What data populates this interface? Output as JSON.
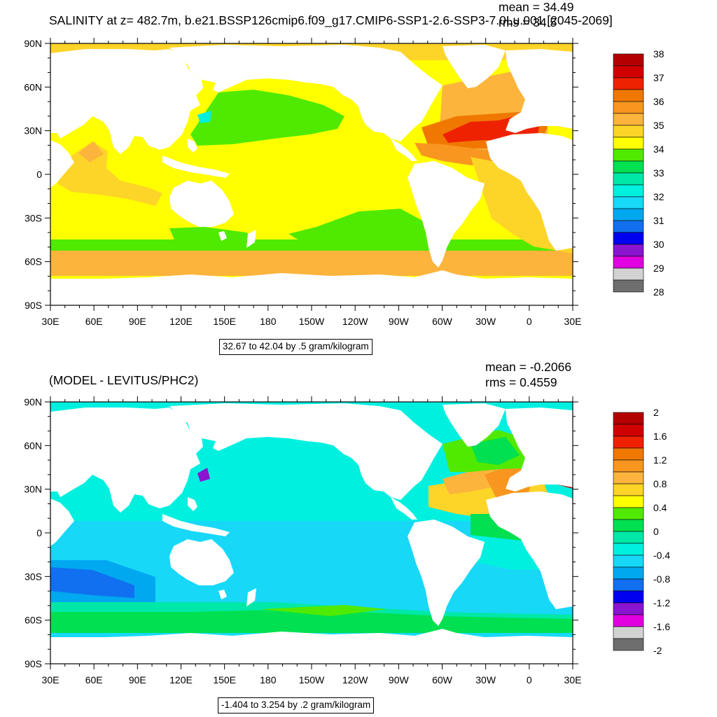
{
  "chart_data": [
    {
      "type": "heatmap",
      "title": "SALINITY at z= 482.7m, b.e21.BSSP126cmip6.f09_g17.CMIP6-SSP1-2.6-SSP3-7.0Lu.001 [2045-2069]",
      "stats": {
        "mean": "mean = 34.49",
        "rms": "rms = 34.5"
      },
      "range_label": "32.67 to 42.04 by .5 gram/kilogram",
      "xticks": [
        "30E",
        "60E",
        "90E",
        "120E",
        "150E",
        "180",
        "150W",
        "120W",
        "90W",
        "60W",
        "30W",
        "0",
        "30E"
      ],
      "yticks": [
        "90N",
        "60N",
        "30N",
        "0",
        "30S",
        "60S",
        "90S"
      ],
      "colorbar": {
        "labels": [
          "38",
          "37",
          "36",
          "35",
          "34",
          "33",
          "32",
          "31",
          "30",
          "29",
          "28"
        ],
        "colors": [
          "#b40000",
          "#d10000",
          "#ee2200",
          "#f07800",
          "#f89620",
          "#fcb43c",
          "#fdd428",
          "#ffff00",
          "#50ea00",
          "#00e050",
          "#00e8a8",
          "#00f0e0",
          "#18d8f8",
          "#00a8f0",
          "#1070f0",
          "#0000f0",
          "#8a14d0",
          "#e000e0",
          "#d2d2d2",
          "#6e6e6e"
        ]
      }
    },
    {
      "type": "heatmap",
      "title": "(MODEL - LEVITUS/PHC2)",
      "stats": {
        "mean": "mean = -0.2066",
        "rms": "rms = 0.4559"
      },
      "range_label": "-1.404 to 3.254 by .2 gram/kilogram",
      "xticks": [
        "30E",
        "60E",
        "90E",
        "120E",
        "150E",
        "180",
        "150W",
        "120W",
        "90W",
        "60W",
        "30W",
        "0",
        "30E"
      ],
      "yticks": [
        "90N",
        "60N",
        "30N",
        "0",
        "30S",
        "60S",
        "90S"
      ],
      "colorbar": {
        "labels": [
          "2",
          "1.6",
          "1.2",
          "0.8",
          "0.4",
          "0",
          "-0.4",
          "-0.8",
          "-1.2",
          "-1.6",
          "-2"
        ],
        "colors": [
          "#b40000",
          "#d10000",
          "#ee2200",
          "#f07800",
          "#f89620",
          "#fcb43c",
          "#fdd428",
          "#ffff00",
          "#50ea00",
          "#00e050",
          "#00e8a8",
          "#00f0e0",
          "#18d8f8",
          "#00a8f0",
          "#1070f0",
          "#0000f0",
          "#8a14d0",
          "#e000e0",
          "#d2d2d2",
          "#6e6e6e"
        ]
      }
    }
  ]
}
